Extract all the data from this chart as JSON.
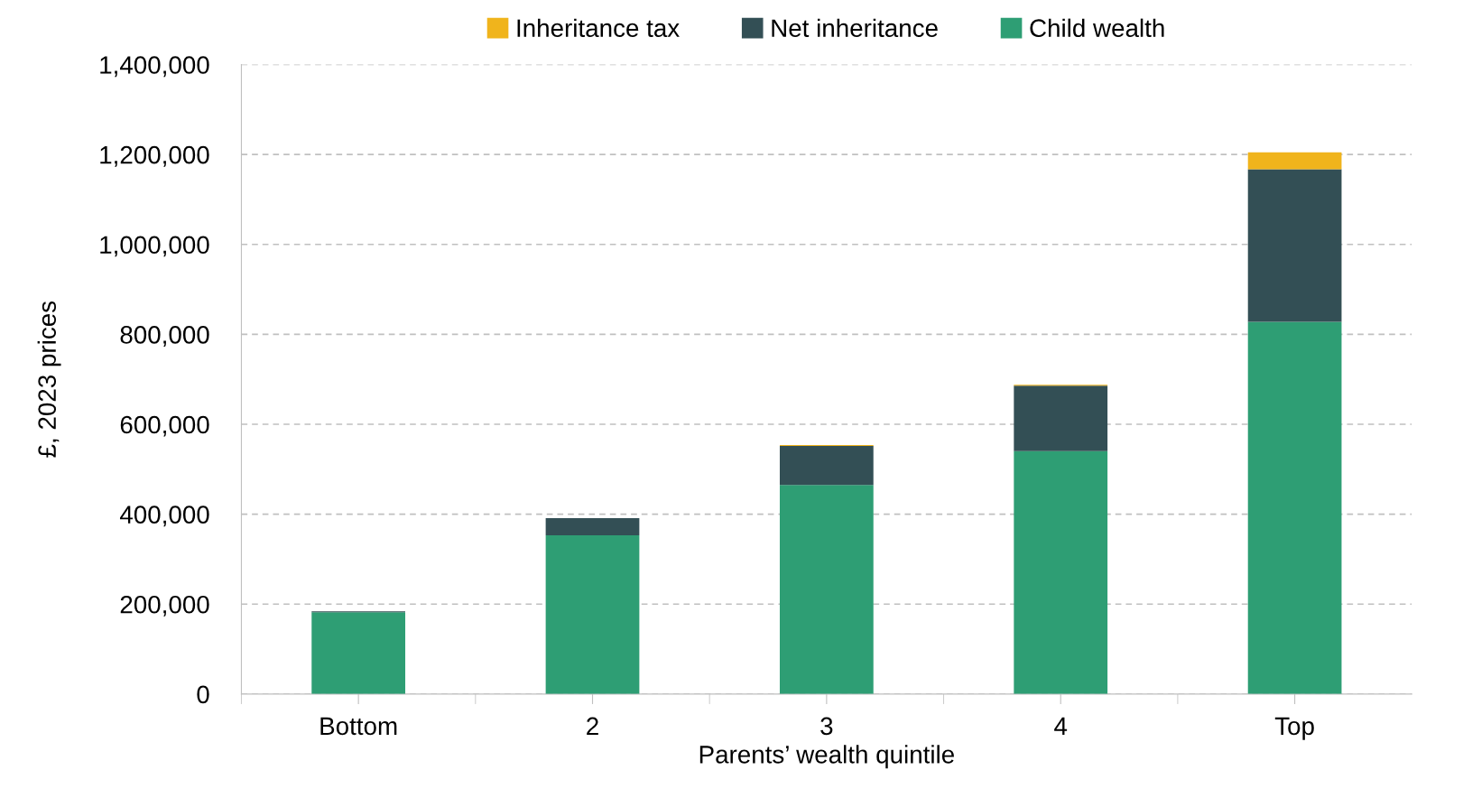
{
  "chart_data": {
    "type": "bar",
    "stacked": true,
    "xlabel": "Parents’ wealth quintile",
    "ylabel": "£, 2023 prices",
    "categories": [
      "Bottom",
      "2",
      "3",
      "4",
      "Top"
    ],
    "series": [
      {
        "name": "Child wealth",
        "color": "#2e9e74",
        "values": [
          182000,
          353000,
          465000,
          540000,
          828000
        ]
      },
      {
        "name": "Net inheritance",
        "color": "#334f55",
        "values": [
          2000,
          38000,
          87000,
          146000,
          339000
        ]
      },
      {
        "name": "Inheritance tax",
        "color": "#f0b41c",
        "values": [
          0,
          0,
          2000,
          2000,
          38000
        ]
      }
    ],
    "ylim": [
      0,
      1400000
    ],
    "yticks": [
      {
        "value": 0,
        "label": "0"
      },
      {
        "value": 200000,
        "label": "200,000"
      },
      {
        "value": 400000,
        "label": "400,000"
      },
      {
        "value": 600000,
        "label": "600,000"
      },
      {
        "value": 800000,
        "label": "800,000"
      },
      {
        "value": 1000000,
        "label": "1,000,000"
      },
      {
        "value": 1200000,
        "label": "1,200,000"
      },
      {
        "value": 1400000,
        "label": "1,400,000"
      }
    ],
    "grid": "y",
    "legend": "top"
  }
}
